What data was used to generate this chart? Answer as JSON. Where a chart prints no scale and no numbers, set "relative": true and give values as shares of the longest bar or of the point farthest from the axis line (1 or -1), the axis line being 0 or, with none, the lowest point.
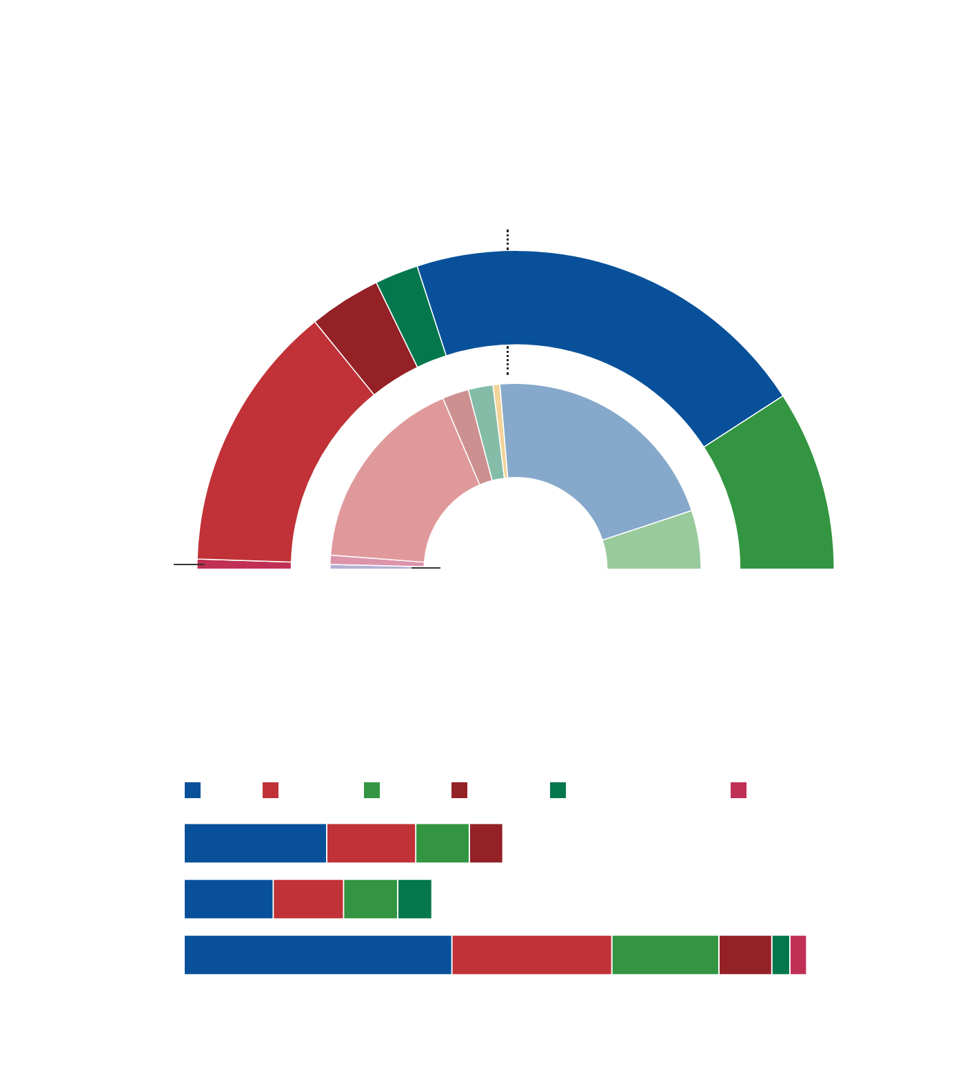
{
  "chart_data": [
    {
      "type": "donut",
      "categories": [
        null,
        null,
        null,
        null,
        null,
        null
      ],
      "values": [
        1,
        27.3,
        7.3,
        4.4,
        41.7,
        18.3
      ],
      "colors": [
        "#c02f55",
        "#c03237",
        "#932126",
        "#04774d",
        "#08519a",
        "#339541"
      ]
    },
    {
      "type": "donut",
      "categories": [
        null,
        null,
        null,
        null,
        null,
        null,
        null,
        null
      ],
      "values": [
        0.8,
        1.6,
        34.8,
        4.6,
        4.3,
        1.2,
        42.5,
        10.2
      ],
      "colors": [
        "#b3b1d3",
        "#dc94aa",
        "#e0999b",
        "#cc9090",
        "#84bca8",
        "#f2d49a",
        "#86a8ca",
        "#99ca9c"
      ]
    },
    {
      "type": "bar",
      "orientation": "horizontal",
      "stacked": true,
      "relative": true,
      "categories": [
        null,
        null,
        null
      ],
      "series": [
        {
          "color": "#08519a",
          "values": [
            0.229,
            0.143,
            0.43
          ]
        },
        {
          "color": "#c03237",
          "values": [
            0.143,
            0.113,
            0.257
          ]
        },
        {
          "color": "#339541",
          "values": [
            0.086,
            0.087,
            0.172
          ]
        },
        {
          "color": "#932126",
          "values": [
            0.054,
            null,
            0.085
          ]
        },
        {
          "color": "#04774d",
          "values": [
            null,
            0.055,
            0.029
          ]
        },
        {
          "color": "#c02f55",
          "values": [
            null,
            null,
            0.027
          ]
        }
      ]
    }
  ]
}
